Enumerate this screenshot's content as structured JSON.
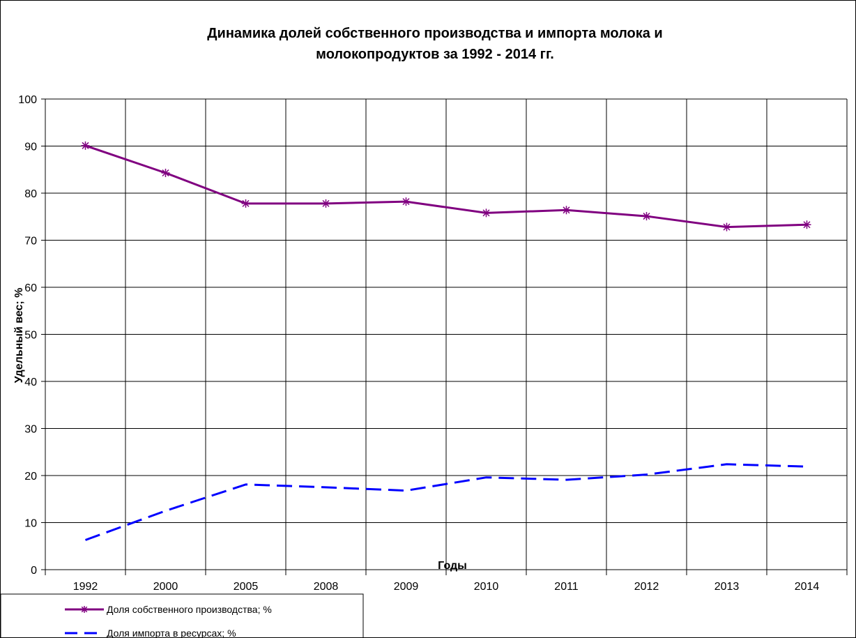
{
  "chart_data": {
    "type": "line",
    "title": "Динамика долей собственного производства и импорта молока и молокопродуктов за 1992 - 2014 гг.",
    "title_lines": [
      "Динамика долей собственного производства и импорта молока и",
      "молокопродуктов за 1992 - 2014 гг."
    ],
    "xlabel": "Годы",
    "ylabel": "Удельный вес; %",
    "categories": [
      "1992",
      "2000",
      "2005",
      "2008",
      "2009",
      "2010",
      "2011",
      "2012",
      "2013",
      "2014"
    ],
    "ylim": [
      0,
      100
    ],
    "yticks": [
      0,
      10,
      20,
      30,
      40,
      50,
      60,
      70,
      80,
      90,
      100
    ],
    "grid": true,
    "legend_position": "bottom-left",
    "series": [
      {
        "name": "Доля собственного производства; %",
        "values": [
          90.1,
          84.3,
          77.8,
          77.8,
          78.2,
          75.8,
          76.4,
          75.1,
          72.8,
          73.3
        ],
        "color": "#800080",
        "line_style": "solid",
        "marker": "asterisk"
      },
      {
        "name": "Доля импорта в ресурсах; %",
        "values": [
          6.3,
          12.5,
          18.1,
          17.5,
          16.8,
          19.6,
          19.1,
          20.2,
          22.4,
          21.9
        ],
        "color": "#0000ff",
        "line_style": "dashed",
        "marker": "none"
      }
    ]
  }
}
